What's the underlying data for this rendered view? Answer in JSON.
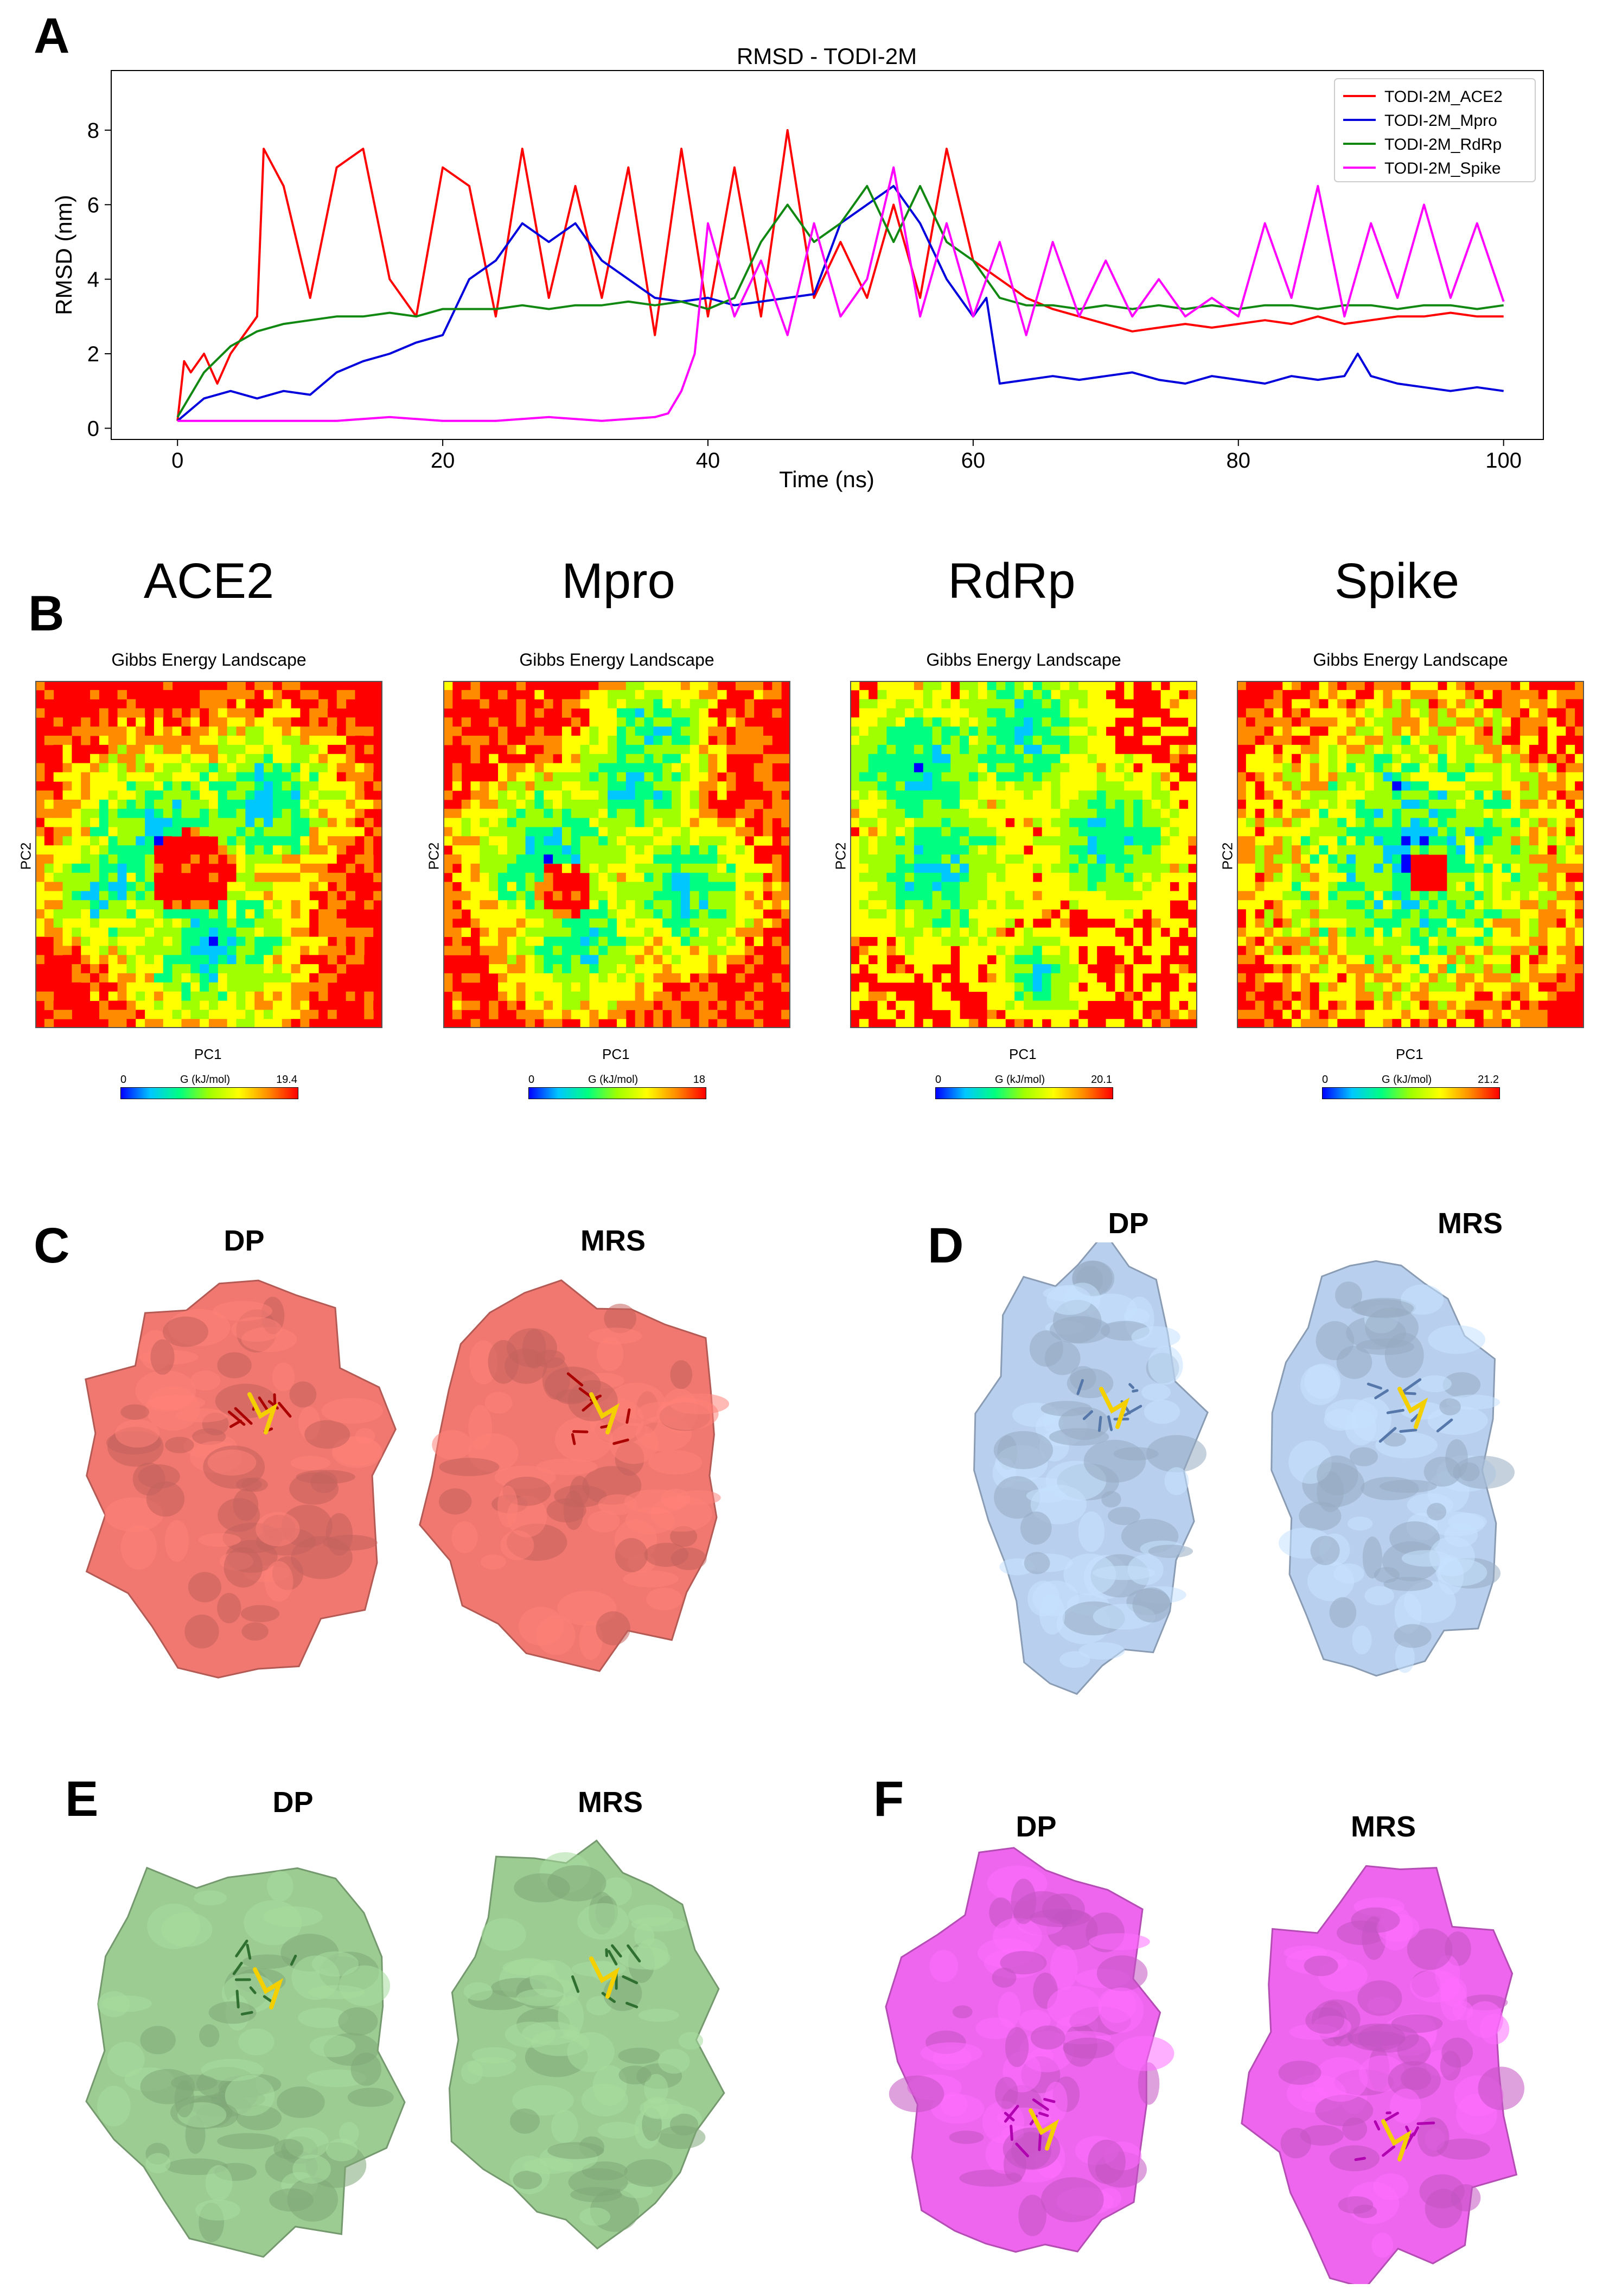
{
  "panel_a": {
    "letter": "A",
    "chart_data": {
      "type": "line",
      "title": "RMSD - TODI-2M",
      "xlabel": "Time (ns)",
      "ylabel": "RMSD (nm)",
      "xlim": [
        -5,
        103
      ],
      "ylim": [
        -0.3,
        9.6
      ],
      "xticks": [
        0,
        20,
        40,
        60,
        80,
        100
      ],
      "yticks": [
        0,
        2,
        4,
        6,
        8
      ],
      "legend_position": "top-right",
      "series": [
        {
          "name": "TODI-2M_ACE2",
          "color": "#ff0000",
          "x": [
            0,
            0.5,
            1,
            2,
            3,
            4,
            5,
            6,
            6.5,
            8,
            10,
            12,
            14,
            16,
            18,
            20,
            22,
            24,
            26,
            28,
            30,
            32,
            34,
            36,
            38,
            40,
            42,
            44,
            46,
            48,
            50,
            52,
            54,
            56,
            58,
            60,
            62,
            64,
            66,
            68,
            70,
            72,
            74,
            76,
            78,
            80,
            82,
            84,
            86,
            88,
            90,
            92,
            94,
            96,
            98,
            100
          ],
          "y": [
            0.2,
            1.8,
            1.5,
            2.0,
            1.2,
            2.0,
            2.5,
            3.0,
            7.5,
            6.5,
            3.5,
            7.0,
            7.5,
            4.0,
            3.0,
            7.0,
            6.5,
            3.0,
            7.5,
            3.5,
            6.5,
            3.5,
            7.0,
            2.5,
            7.5,
            3.0,
            7.0,
            3.0,
            8.0,
            3.5,
            5.0,
            3.5,
            6.0,
            3.5,
            7.5,
            4.5,
            4.0,
            3.5,
            3.2,
            3.0,
            2.8,
            2.6,
            2.7,
            2.8,
            2.7,
            2.8,
            2.9,
            2.8,
            3.0,
            2.8,
            2.9,
            3.0,
            3.0,
            3.1,
            3.0,
            3.0
          ]
        },
        {
          "name": "TODI-2M_Mpro",
          "color": "#0000dd",
          "x": [
            0,
            2,
            4,
            6,
            8,
            10,
            12,
            14,
            16,
            18,
            20,
            22,
            24,
            26,
            28,
            30,
            32,
            34,
            36,
            38,
            40,
            42,
            44,
            46,
            48,
            50,
            52,
            54,
            56,
            58,
            60,
            61,
            62,
            64,
            66,
            68,
            70,
            72,
            74,
            76,
            78,
            80,
            82,
            84,
            86,
            88,
            89,
            90,
            92,
            94,
            96,
            98,
            100
          ],
          "y": [
            0.2,
            0.8,
            1.0,
            0.8,
            1.0,
            0.9,
            1.5,
            1.8,
            2.0,
            2.3,
            2.5,
            4.0,
            4.5,
            5.5,
            5.0,
            5.5,
            4.5,
            4.0,
            3.5,
            3.4,
            3.5,
            3.3,
            3.4,
            3.5,
            3.6,
            5.5,
            6.0,
            6.5,
            5.5,
            4.0,
            3.0,
            3.5,
            1.2,
            1.3,
            1.4,
            1.3,
            1.4,
            1.5,
            1.3,
            1.2,
            1.4,
            1.3,
            1.2,
            1.4,
            1.3,
            1.4,
            2.0,
            1.4,
            1.2,
            1.1,
            1.0,
            1.1,
            1.0
          ]
        },
        {
          "name": "TODI-2M_RdRp",
          "color": "#118811",
          "x": [
            0,
            2,
            4,
            6,
            8,
            10,
            12,
            14,
            16,
            18,
            20,
            22,
            24,
            26,
            28,
            30,
            32,
            34,
            36,
            38,
            40,
            42,
            44,
            46,
            48,
            50,
            52,
            54,
            56,
            58,
            60,
            62,
            64,
            66,
            68,
            70,
            72,
            74,
            76,
            78,
            80,
            82,
            84,
            86,
            88,
            90,
            92,
            94,
            96,
            98,
            100
          ],
          "y": [
            0.3,
            1.5,
            2.2,
            2.6,
            2.8,
            2.9,
            3.0,
            3.0,
            3.1,
            3.0,
            3.2,
            3.2,
            3.2,
            3.3,
            3.2,
            3.3,
            3.3,
            3.4,
            3.3,
            3.4,
            3.2,
            3.5,
            5.0,
            6.0,
            5.0,
            5.5,
            6.5,
            5.0,
            6.5,
            5.0,
            4.5,
            3.5,
            3.3,
            3.3,
            3.2,
            3.3,
            3.2,
            3.3,
            3.2,
            3.3,
            3.2,
            3.3,
            3.3,
            3.2,
            3.3,
            3.3,
            3.2,
            3.3,
            3.3,
            3.2,
            3.3
          ]
        },
        {
          "name": "TODI-2M_Spike",
          "color": "#ff00ff",
          "x": [
            0,
            4,
            8,
            12,
            16,
            20,
            24,
            28,
            32,
            36,
            37,
            38,
            39,
            40,
            42,
            44,
            46,
            48,
            50,
            52,
            54,
            56,
            58,
            60,
            62,
            64,
            66,
            68,
            70,
            72,
            74,
            76,
            78,
            80,
            82,
            84,
            86,
            88,
            90,
            92,
            94,
            96,
            98,
            100
          ],
          "y": [
            0.2,
            0.2,
            0.2,
            0.2,
            0.3,
            0.2,
            0.2,
            0.3,
            0.2,
            0.3,
            0.4,
            1.0,
            2.0,
            5.5,
            3.0,
            4.5,
            2.5,
            5.5,
            3.0,
            4.0,
            7.0,
            3.0,
            5.5,
            3.0,
            5.0,
            2.5,
            5.0,
            3.0,
            4.5,
            3.0,
            4.0,
            3.0,
            3.5,
            3.0,
            5.5,
            3.5,
            6.5,
            3.0,
            5.5,
            3.5,
            6.0,
            3.5,
            5.5,
            3.4
          ]
        }
      ]
    }
  },
  "panel_b": {
    "letter": "B",
    "heatmap_title": "Gibbs Energy Landscape",
    "xlabel": "PC1",
    "ylabel": "PC2",
    "colorbar_label": "G (kJ/mol)",
    "colorbar_min": "0",
    "colorbar_colors": [
      "#0000ff",
      "#00c8ff",
      "#00ff80",
      "#a0ff00",
      "#ffff00",
      "#ff8c00",
      "#ff0000"
    ],
    "landscapes": [
      {
        "name": "ACE2",
        "max": "19.4"
      },
      {
        "name": "Mpro",
        "max": "18"
      },
      {
        "name": "RdRp",
        "max": "20.1"
      },
      {
        "name": "Spike",
        "max": "21.2"
      }
    ]
  },
  "panels_structures": [
    {
      "letter": "C",
      "left_label": "DP",
      "right_label": "MRS",
      "color": "#f07870"
    },
    {
      "letter": "D",
      "left_label": "DP",
      "right_label": "MRS",
      "color": "#b8d0ee"
    },
    {
      "letter": "E",
      "left_label": "DP",
      "right_label": "MRS",
      "color": "#9ccc92"
    },
    {
      "letter": "F",
      "left_label": "DP",
      "right_label": "MRS",
      "color": "#ee66ee"
    }
  ]
}
